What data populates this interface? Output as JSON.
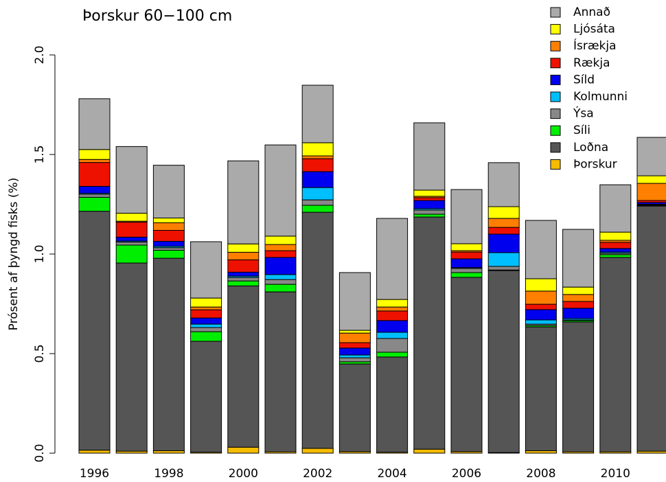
{
  "chart_data": {
    "type": "stacked_bar",
    "title": "Þorskur 60−100 cm",
    "y_label": "Prósent af þyngd fisks (%)",
    "categories": [
      "1996",
      null,
      "1998",
      null,
      "2000",
      null,
      "2002",
      null,
      "2004",
      null,
      "2006",
      null,
      "2008",
      null,
      "2010",
      null
    ],
    "ylim": [
      0,
      2
    ],
    "yticks": [
      {
        "value": 0,
        "label": "0.0"
      },
      0.5,
      {
        "value": 1,
        "label": "1.0"
      },
      1.5,
      {
        "value": 2,
        "label": "2.0"
      }
    ],
    "legend": "top-right",
    "series": [
      {
        "name": "Þorskur",
        "color": "#f5bc00",
        "values": [
          0.015,
          0.01,
          0.012,
          0.005,
          0.03,
          0.007,
          0.024,
          0.008,
          0.005,
          0.02,
          0.008,
          0.003,
          0.012,
          0.007,
          0.007,
          0.01
        ]
      },
      {
        "name": "Loðna",
        "color": "#555555",
        "values": [
          1.2,
          0.945,
          0.967,
          0.557,
          0.81,
          0.803,
          1.186,
          0.44,
          0.478,
          1.166,
          0.875,
          0.914,
          0.622,
          0.652,
          0.976,
          1.231
        ]
      },
      {
        "name": "Síli",
        "color": "#00ee00",
        "values": [
          0.07,
          0.09,
          0.04,
          0.048,
          0.025,
          0.038,
          0.035,
          0.011,
          0.024,
          0.014,
          0.024,
          0.003,
          0.007,
          0.007,
          0.014,
          0.003
        ]
      },
      {
        "name": "Ýsa",
        "color": "#888888",
        "values": [
          0.015,
          0.015,
          0.013,
          0.021,
          0.017,
          0.024,
          0.027,
          0.02,
          0.069,
          0.021,
          0.021,
          0.018,
          0.007,
          0.003,
          0.007,
          0.003
        ]
      },
      {
        "name": "Kolmunni",
        "color": "#00bfff",
        "values": [
          0.005,
          0.005,
          0.007,
          0.017,
          0.007,
          0.025,
          0.062,
          0.014,
          0.031,
          0.007,
          0.004,
          0.069,
          0.021,
          0.007,
          0.006,
          0.003
        ]
      },
      {
        "name": "Síld",
        "color": "#0000ee",
        "values": [
          0.035,
          0.02,
          0.025,
          0.031,
          0.02,
          0.086,
          0.08,
          0.035,
          0.059,
          0.041,
          0.044,
          0.093,
          0.052,
          0.052,
          0.018,
          0.009
        ]
      },
      {
        "name": "Rækja",
        "color": "#ee1100",
        "values": [
          0.12,
          0.075,
          0.055,
          0.041,
          0.062,
          0.034,
          0.065,
          0.027,
          0.048,
          0.014,
          0.034,
          0.034,
          0.027,
          0.034,
          0.031,
          0.01
        ]
      },
      {
        "name": "Ísrækja",
        "color": "#ff7f00",
        "values": [
          0.015,
          0.005,
          0.038,
          0.014,
          0.038,
          0.031,
          0.014,
          0.048,
          0.02,
          0.007,
          0.007,
          0.045,
          0.066,
          0.035,
          0.01,
          0.086
        ]
      },
      {
        "name": "Ljósáta",
        "color": "#ffff00",
        "values": [
          0.05,
          0.04,
          0.024,
          0.045,
          0.042,
          0.042,
          0.066,
          0.014,
          0.038,
          0.031,
          0.035,
          0.059,
          0.062,
          0.037,
          0.041,
          0.038
        ]
      },
      {
        "name": "Annað",
        "color": "#aaaaaa",
        "values": [
          0.255,
          0.335,
          0.265,
          0.283,
          0.417,
          0.458,
          0.289,
          0.29,
          0.407,
          0.338,
          0.272,
          0.221,
          0.293,
          0.29,
          0.238,
          0.193
        ]
      }
    ]
  }
}
